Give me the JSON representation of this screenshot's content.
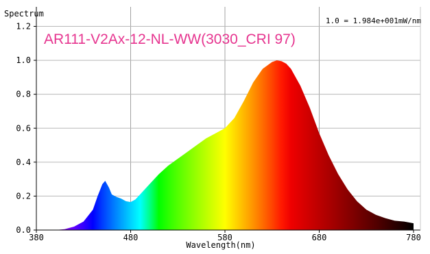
{
  "chart_data": {
    "type": "area",
    "title": "AR111-V2Ax-12-NL-WW(3030_CRI 97)",
    "ylabel": "Spectrum",
    "xlabel": "Wavelength(nm)",
    "scale_note": "1.0 = 1.984e+001mW/nm",
    "xlim": [
      380,
      780
    ],
    "ylim": [
      0,
      1.2
    ],
    "x_ticks": [
      380,
      480,
      580,
      680,
      780
    ],
    "y_ticks": [
      0.0,
      0.2,
      0.4,
      0.6,
      0.8,
      1.0,
      1.2
    ],
    "x_tick_labels": [
      "380",
      "480",
      "580",
      "680",
      "780"
    ],
    "y_tick_labels": [
      "0.0",
      "0.2",
      "0.4",
      "0.6",
      "0.8",
      "1.0",
      "1.2"
    ],
    "grid": true,
    "fill": "spectral rainbow (violet to deep red)",
    "x": [
      380,
      390,
      400,
      410,
      420,
      430,
      440,
      445,
      450,
      453,
      457,
      460,
      465,
      470,
      475,
      480,
      485,
      490,
      500,
      510,
      520,
      530,
      540,
      550,
      560,
      570,
      580,
      590,
      600,
      610,
      620,
      630,
      635,
      640,
      645,
      650,
      660,
      670,
      680,
      690,
      700,
      710,
      720,
      730,
      740,
      750,
      760,
      770,
      780
    ],
    "y": [
      0.0,
      0.0,
      0.0,
      0.005,
      0.02,
      0.05,
      0.12,
      0.2,
      0.27,
      0.29,
      0.25,
      0.21,
      0.195,
      0.185,
      0.17,
      0.165,
      0.18,
      0.21,
      0.27,
      0.33,
      0.38,
      0.42,
      0.46,
      0.5,
      0.54,
      0.57,
      0.6,
      0.66,
      0.76,
      0.87,
      0.95,
      0.99,
      1.0,
      0.995,
      0.98,
      0.95,
      0.85,
      0.72,
      0.57,
      0.44,
      0.33,
      0.24,
      0.17,
      0.12,
      0.09,
      0.07,
      0.055,
      0.05,
      0.04
    ]
  }
}
